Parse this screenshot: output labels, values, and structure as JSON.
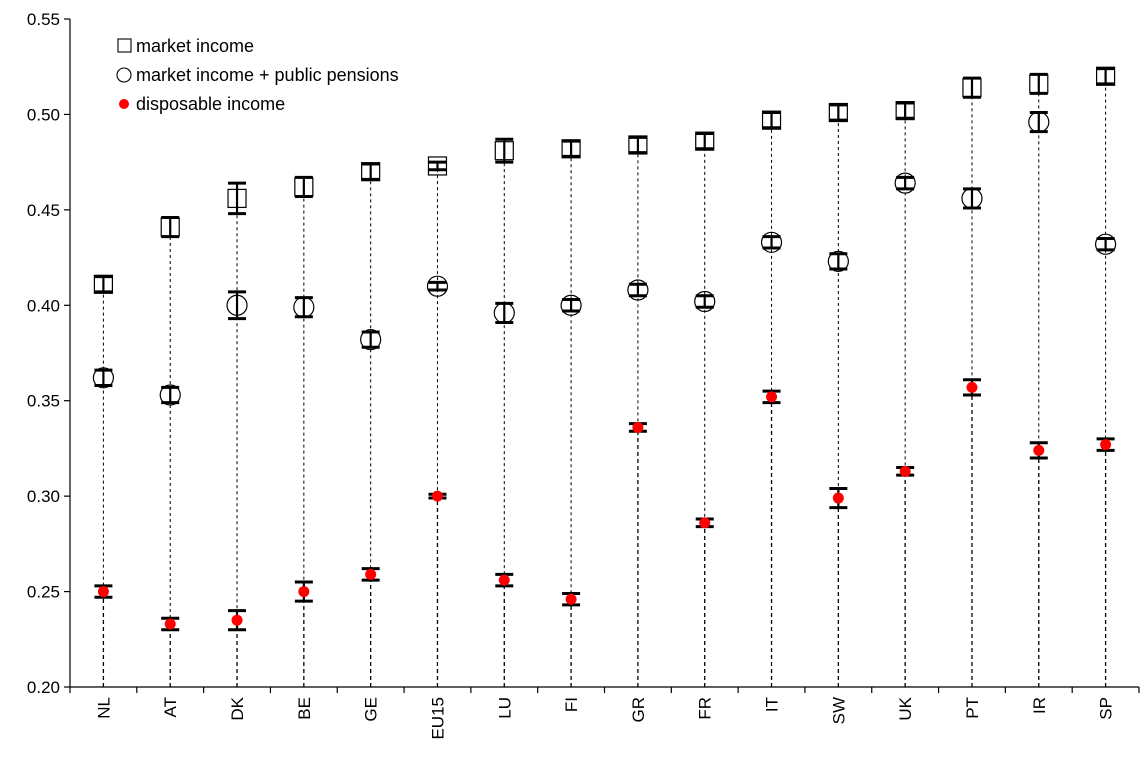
{
  "chart_data": {
    "type": "scatter",
    "categories": [
      "NL",
      "AT",
      "DK",
      "BE",
      "GE",
      "EU15",
      "LU",
      "FI",
      "GR",
      "FR",
      "IT",
      "SW",
      "UK",
      "PT",
      "IR",
      "SP"
    ],
    "ylim": [
      0.2,
      0.55
    ],
    "yticks": [
      "0.20",
      "0.25",
      "0.30",
      "0.35",
      "0.40",
      "0.45",
      "0.50",
      "0.55"
    ],
    "grid": false,
    "legend_position": "top-left",
    "series": [
      {
        "name": "market income",
        "marker": "square",
        "values": [
          0.411,
          0.441,
          0.456,
          0.462,
          0.47,
          0.473,
          0.481,
          0.482,
          0.484,
          0.486,
          0.497,
          0.501,
          0.502,
          0.514,
          0.516,
          0.52
        ],
        "err": [
          0.004,
          0.005,
          0.008,
          0.005,
          0.004,
          0.002,
          0.006,
          0.004,
          0.004,
          0.004,
          0.004,
          0.004,
          0.004,
          0.005,
          0.005,
          0.004
        ]
      },
      {
        "name": "market income + public pensions",
        "marker": "circle",
        "values": [
          0.362,
          0.353,
          0.4,
          0.399,
          0.382,
          0.41,
          0.396,
          0.4,
          0.408,
          0.402,
          0.433,
          0.423,
          0.464,
          0.456,
          0.496,
          0.432
        ],
        "err": [
          0.004,
          0.004,
          0.007,
          0.005,
          0.004,
          0.002,
          0.005,
          0.003,
          0.003,
          0.003,
          0.003,
          0.004,
          0.003,
          0.005,
          0.005,
          0.003
        ]
      },
      {
        "name": "disposable income",
        "marker": "dot",
        "color": "#ff0000",
        "values": [
          0.25,
          0.233,
          0.235,
          0.25,
          0.259,
          0.3,
          0.256,
          0.246,
          0.336,
          0.286,
          0.352,
          0.299,
          0.313,
          0.357,
          0.324,
          0.327
        ],
        "err": [
          0.003,
          0.003,
          0.005,
          0.005,
          0.003,
          0.001,
          0.003,
          0.003,
          0.002,
          0.002,
          0.003,
          0.005,
          0.002,
          0.004,
          0.004,
          0.003
        ]
      }
    ]
  }
}
